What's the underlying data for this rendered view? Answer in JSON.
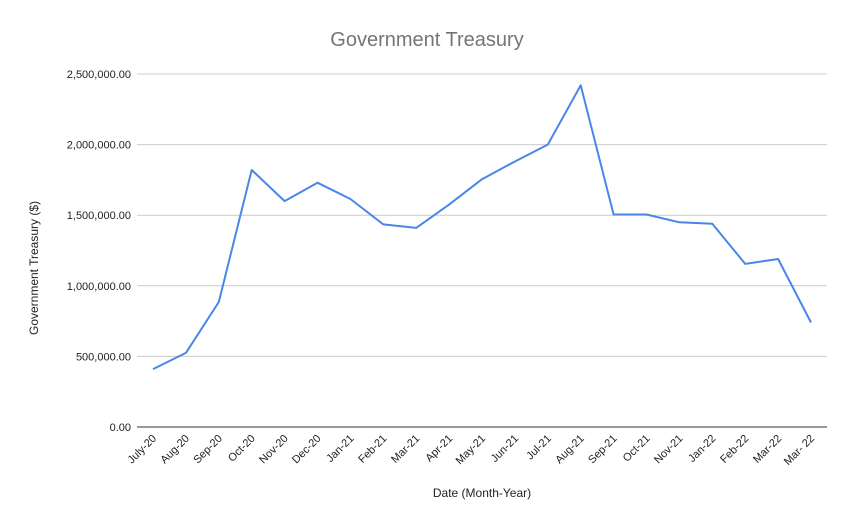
{
  "chart_data": {
    "type": "line",
    "title": "Government Treasury",
    "xlabel": "Date (Month-Year)",
    "ylabel": "Government Treasury ($)",
    "categories": [
      "July-20",
      "Aug-20",
      "Sep-20",
      "Oct-20",
      "Nov-20",
      "Dec-20",
      "Jan-21",
      "Feb-21",
      "Mar-21",
      "Apr-21",
      "May-21",
      "Jun-21",
      "Jul-21",
      "Aug-21",
      "Sep-21",
      "Oct-21",
      "Nov-21",
      "Jan-22",
      "Feb-22",
      "Mar-22",
      "Mar- 22"
    ],
    "series": [
      {
        "values": [
          410000,
          525000,
          885000,
          1820000,
          1600000,
          1730000,
          1615000,
          1435000,
          1410000,
          1575000,
          1755000,
          1880000,
          2000000,
          2420000,
          1505000,
          1505000,
          1450000,
          1440000,
          1155000,
          1190000,
          740000
        ]
      }
    ],
    "ylim": [
      0,
      2500000
    ],
    "yticks": [
      0,
      500000,
      1000000,
      1500000,
      2000000,
      2500000
    ],
    "ytick_labels": [
      "0.00",
      "500,000.00",
      "1,000,000.00",
      "1,500,000.00",
      "2,000,000.00",
      "2,500,000.00"
    ],
    "grid": true,
    "legend": "none",
    "colors": {
      "series": "#4a86e8",
      "grid": "#cccccc",
      "title": "#757575"
    }
  }
}
